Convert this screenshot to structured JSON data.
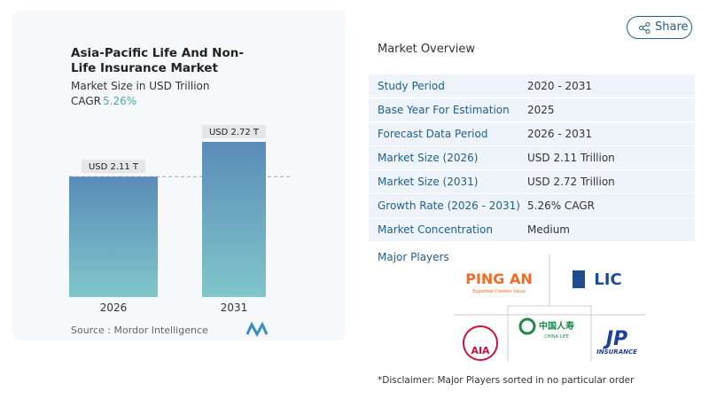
{
  "share": "Share",
  "chart_data": {
    "type": "bar",
    "title": "Asia-Pacific Life And Non-Life Insurance Market",
    "subtitle": "Market Size in USD Trillion",
    "cagr_label": "CAGR",
    "cagr_value": "5.26%",
    "categories": [
      "2026",
      "2031"
    ],
    "values": [
      2.11,
      2.72
    ],
    "value_labels": [
      "USD 2.11 T",
      "USD 2.72 T"
    ],
    "color": "#5a8cb8",
    "color_bottom": "#80c6ca",
    "source": "Source :  Mordor Intelligence"
  },
  "overview": {
    "title": "Market Overview",
    "rows": [
      [
        "Study Period",
        "2020 - 2031"
      ],
      [
        "Base Year For Estimation",
        "2025"
      ],
      [
        "Forecast Data Period",
        "2026 - 2031"
      ],
      [
        "Market Size (2026)",
        "USD 2.11 Trillion"
      ],
      [
        "Market Size (2031)",
        "USD 2.72 Trillion"
      ],
      [
        "Growth Rate (2026 - 2031)",
        "5.26% CAGR"
      ],
      [
        "Market Concentration",
        "Medium"
      ]
    ]
  },
  "players": {
    "title": "Major Players",
    "ping_an": [
      "PING AN",
      "Expertise Creates Value"
    ],
    "lic": "LIC",
    "china_life": [
      "中国人寿",
      "CHINA LIFE"
    ],
    "aia": "AIA",
    "jp": [
      "JP",
      "INSURANCE"
    ]
  },
  "disclaimer": "*Disclaimer: Major Players sorted in no particular order"
}
